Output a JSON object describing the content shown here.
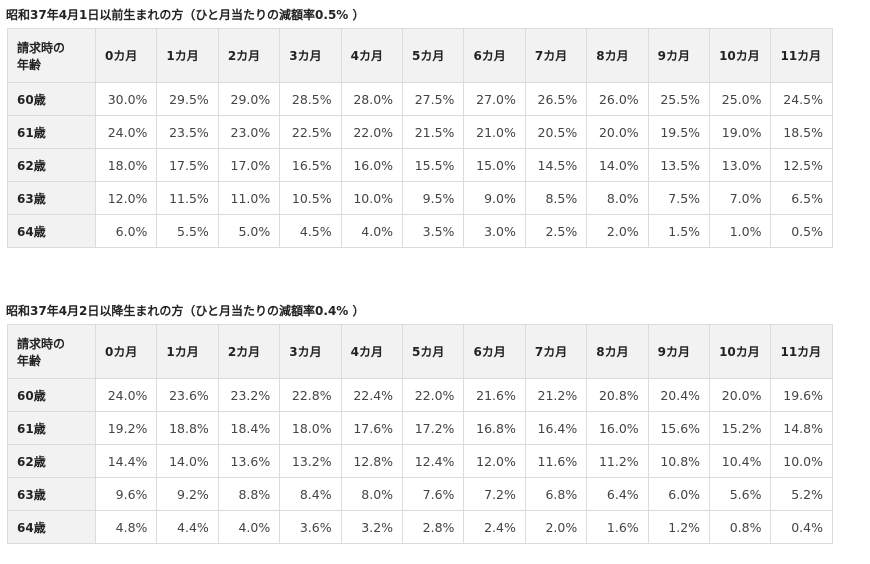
{
  "tables": [
    {
      "title": "昭和37年4月1日以前生まれの方（ひと月当たりの減額率0.5% ）",
      "corner": [
        "請求時の",
        "年齢"
      ],
      "months": [
        "0カ月",
        "1カ月",
        "2カ月",
        "3カ月",
        "4カ月",
        "5カ月",
        "6カ月",
        "7カ月",
        "8カ月",
        "9カ月",
        "10カ月",
        "11カ月"
      ],
      "rows": [
        {
          "age": "60歳",
          "values": [
            "30.0%",
            "29.5%",
            "29.0%",
            "28.5%",
            "28.0%",
            "27.5%",
            "27.0%",
            "26.5%",
            "26.0%",
            "25.5%",
            "25.0%",
            "24.5%"
          ]
        },
        {
          "age": "61歳",
          "values": [
            "24.0%",
            "23.5%",
            "23.0%",
            "22.5%",
            "22.0%",
            "21.5%",
            "21.0%",
            "20.5%",
            "20.0%",
            "19.5%",
            "19.0%",
            "18.5%"
          ]
        },
        {
          "age": "62歳",
          "values": [
            "18.0%",
            "17.5%",
            "17.0%",
            "16.5%",
            "16.0%",
            "15.5%",
            "15.0%",
            "14.5%",
            "14.0%",
            "13.5%",
            "13.0%",
            "12.5%"
          ]
        },
        {
          "age": "63歳",
          "values": [
            "12.0%",
            "11.5%",
            "11.0%",
            "10.5%",
            "10.0%",
            "9.5%",
            "9.0%",
            "8.5%",
            "8.0%",
            "7.5%",
            "7.0%",
            "6.5%"
          ]
        },
        {
          "age": "64歳",
          "values": [
            "6.0%",
            "5.5%",
            "5.0%",
            "4.5%",
            "4.0%",
            "3.5%",
            "3.0%",
            "2.5%",
            "2.0%",
            "1.5%",
            "1.0%",
            "0.5%"
          ]
        }
      ]
    },
    {
      "title": "昭和37年4月2日以降生まれの方（ひと月当たりの減額率0.4% ）",
      "corner": [
        "請求時の",
        "年齢"
      ],
      "months": [
        "0カ月",
        "1カ月",
        "2カ月",
        "3カ月",
        "4カ月",
        "5カ月",
        "6カ月",
        "7カ月",
        "8カ月",
        "9カ月",
        "10カ月",
        "11カ月"
      ],
      "rows": [
        {
          "age": "60歳",
          "values": [
            "24.0%",
            "23.6%",
            "23.2%",
            "22.8%",
            "22.4%",
            "22.0%",
            "21.6%",
            "21.2%",
            "20.8%",
            "20.4%",
            "20.0%",
            "19.6%"
          ]
        },
        {
          "age": "61歳",
          "values": [
            "19.2%",
            "18.8%",
            "18.4%",
            "18.0%",
            "17.6%",
            "17.2%",
            "16.8%",
            "16.4%",
            "16.0%",
            "15.6%",
            "15.2%",
            "14.8%"
          ]
        },
        {
          "age": "62歳",
          "values": [
            "14.4%",
            "14.0%",
            "13.6%",
            "13.2%",
            "12.8%",
            "12.4%",
            "12.0%",
            "11.6%",
            "11.2%",
            "10.8%",
            "10.4%",
            "10.0%"
          ]
        },
        {
          "age": "63歳",
          "values": [
            "9.6%",
            "9.2%",
            "8.8%",
            "8.4%",
            "8.0%",
            "7.6%",
            "7.2%",
            "6.8%",
            "6.4%",
            "6.0%",
            "5.6%",
            "5.2%"
          ]
        },
        {
          "age": "64歳",
          "values": [
            "4.8%",
            "4.4%",
            "4.0%",
            "3.6%",
            "3.2%",
            "2.8%",
            "2.4%",
            "2.0%",
            "1.6%",
            "1.2%",
            "0.8%",
            "0.4%"
          ]
        }
      ]
    }
  ]
}
